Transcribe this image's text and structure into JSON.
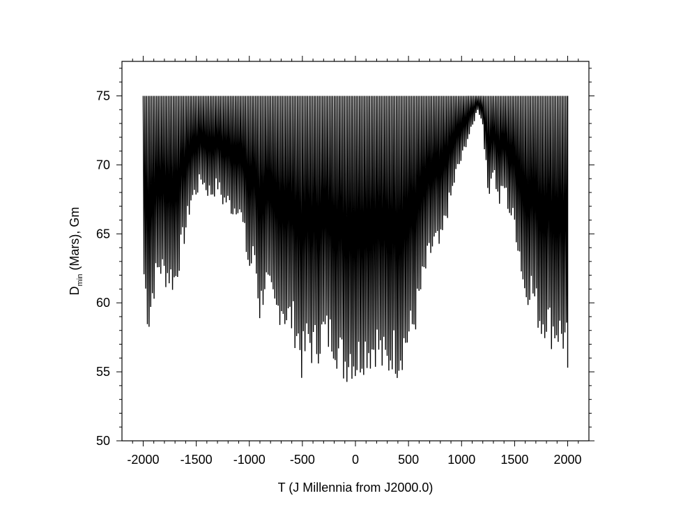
{
  "chart_data": {
    "type": "line",
    "title": "",
    "xlabel": "T (J Millennia from J2000.0)",
    "ylabel": {
      "main": "D",
      "subscript": "min",
      "rest": " (Mars), Gm"
    },
    "xlim": [
      -2200,
      2200
    ],
    "ylim": [
      50,
      77.5
    ],
    "x_ticks": [
      -2000,
      -1500,
      -1000,
      -500,
      0,
      500,
      1000,
      1500,
      2000
    ],
    "x_tick_labels": [
      "-2000",
      "-1500",
      "-1000",
      "-500",
      "0",
      "500",
      "1000",
      "1500",
      "2000"
    ],
    "y_ticks": [
      50,
      55,
      60,
      65,
      70,
      75
    ],
    "y_tick_labels": [
      "50",
      "55",
      "60",
      "65",
      "70",
      "75"
    ],
    "grid": false,
    "line_color": "#000000",
    "cap_value": 75,
    "series": [
      {
        "x": [
          -2000,
          -1950,
          -1900,
          -1850,
          -1800,
          -1750,
          -1700,
          -1650,
          -1600,
          -1550,
          -1500,
          -1450,
          -1400,
          -1350,
          -1300,
          -1250,
          -1200,
          -1150,
          -1100,
          -1050,
          -1000,
          -950,
          -900,
          -850,
          -800,
          -750,
          -700,
          -650,
          -600,
          -550,
          -500,
          -450,
          -400,
          -350,
          -300,
          -250,
          -200,
          -150,
          -100,
          -50,
          0,
          50,
          100,
          150,
          200,
          250,
          300,
          350,
          400,
          450,
          500,
          550,
          600,
          650,
          700,
          750,
          800,
          850,
          900,
          950,
          1000,
          1050,
          1100,
          1150,
          1200,
          1250,
          1300,
          1350,
          1400,
          1450,
          1500,
          1550,
          1600,
          1650,
          1700,
          1750,
          1800,
          1850,
          1900,
          1950,
          2000
        ],
        "minima": [
          61.5,
          57.2,
          60.0,
          61.6,
          61.0,
          60.8,
          60.3,
          62.7,
          64.5,
          66.8,
          67.5,
          68.5,
          67.6,
          67.3,
          68.0,
          66.8,
          66.6,
          66.0,
          66.5,
          64.2,
          61.4,
          62.5,
          58.0,
          60.5,
          59.0,
          57.8,
          58.5,
          57.5,
          57.3,
          56.3,
          53.9,
          55.8,
          55.0,
          55.5,
          56.3,
          56.0,
          55.8,
          54.5,
          53.8,
          54.5,
          53.8,
          54.5,
          55.0,
          54.8,
          55.5,
          54.2,
          53.7,
          55.0,
          54.2,
          55.2,
          56.0,
          57.0,
          59.0,
          61.0,
          62.5,
          63.5,
          63.0,
          65.5,
          67.0,
          69.0,
          70.0,
          71.5,
          72.5,
          74.0,
          72.8,
          67.3,
          69.5,
          66.5,
          68.0,
          66.0,
          65.0,
          62.5,
          59.3,
          60.2,
          58.5,
          57.0,
          57.5,
          56.5,
          56.5,
          56.0,
          55.3
        ]
      }
    ]
  }
}
